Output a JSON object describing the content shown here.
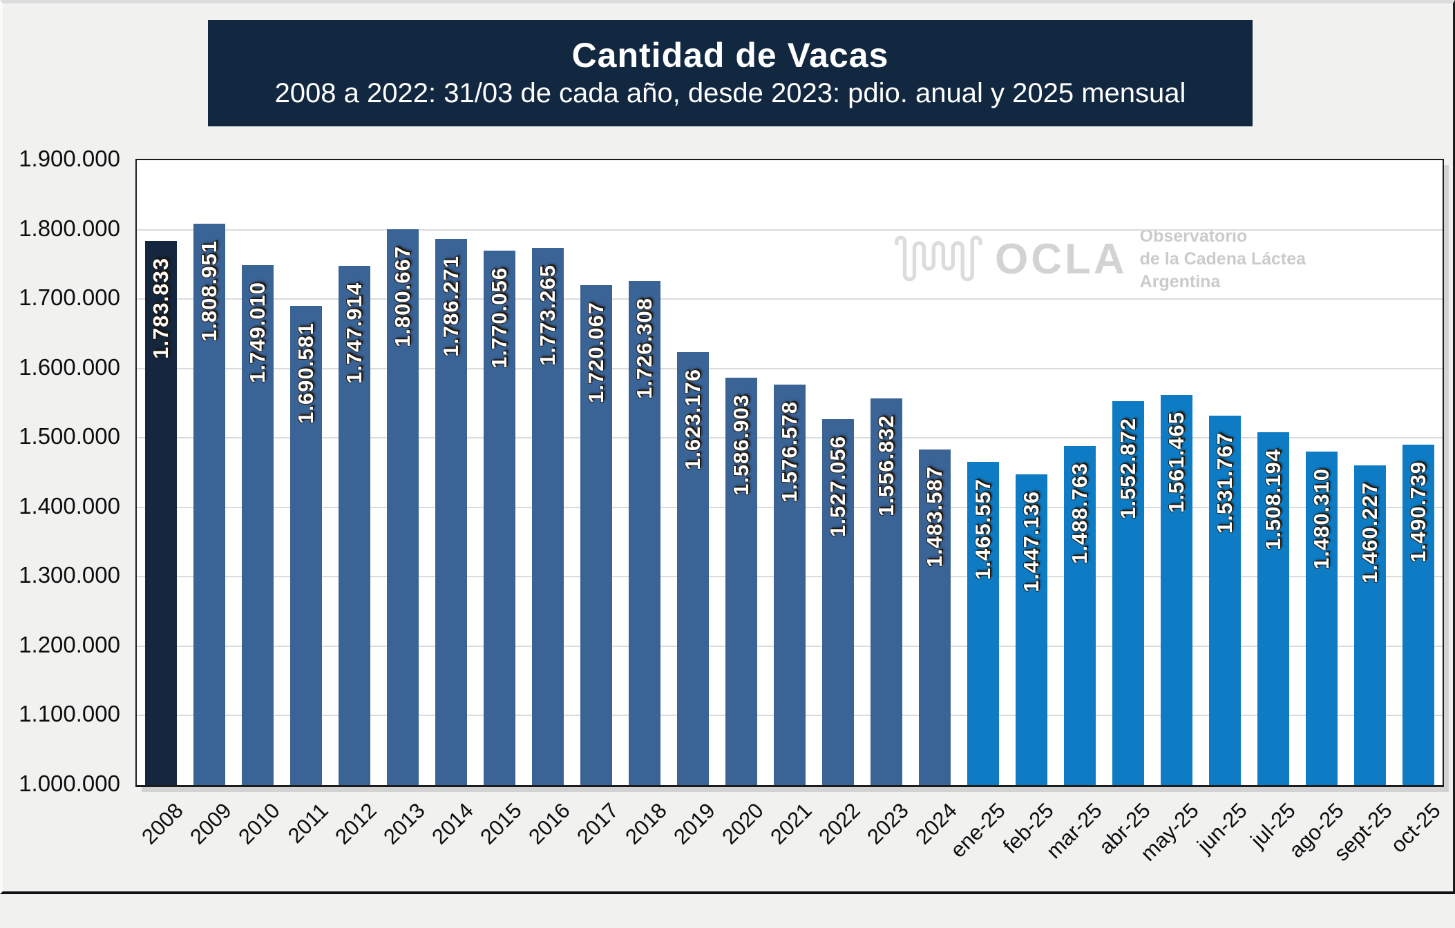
{
  "header": {
    "title": "Cantidad de Vacas",
    "subtitle": "2008 a 2022: 31/03 de cada año, desde 2023: pdio. anual y 2025 mensual"
  },
  "watermark": {
    "brand": "OCLA",
    "line1": "Observatorio",
    "line2": "de la Cadena Láctea",
    "line3": "Argentina"
  },
  "colors": {
    "background": "#F1F1F0",
    "header_bg": "#122740",
    "header_text": "#FFFFFF",
    "plot_bg": "#FFFFFF",
    "plot_border": "#1C1C1C",
    "gridline": "#DBDBDB",
    "axis_text": "#0D0D0D",
    "bar_start": "#14273E",
    "bar_annual": "#3A6396",
    "bar_monthly": "#0E7CC4",
    "bar_label_text": "#FFFFFF",
    "watermark_gray": "#D3D3D3",
    "watermark_text_gray": "#CBCBCB"
  },
  "chart_data": {
    "type": "bar",
    "title": "Cantidad de Vacas",
    "subtitle": "2008 a 2022: 31/03 de cada año, desde 2023: pdio. anual y 2025 mensual",
    "categories": [
      "2008",
      "2009",
      "2010",
      "2011",
      "2012",
      "2013",
      "2014",
      "2015",
      "2016",
      "2017",
      "2018",
      "2019",
      "2020",
      "2021",
      "2022",
      "2023",
      "2024",
      "ene-25",
      "feb-25",
      "mar-25",
      "abr-25",
      "may-25",
      "jun-25",
      "jul-25",
      "ago-25",
      "sept-25",
      "oct-25"
    ],
    "values": [
      1783833,
      1808951,
      1749010,
      1690581,
      1747914,
      1800667,
      1786271,
      1770056,
      1773265,
      1720067,
      1726308,
      1623176,
      1586903,
      1576578,
      1527056,
      1556832,
      1483587,
      1465557,
      1447136,
      1488763,
      1552872,
      1561465,
      1531767,
      1508194,
      1480310,
      1460227,
      1490739
    ],
    "groups": [
      "start",
      "annual",
      "annual",
      "annual",
      "annual",
      "annual",
      "annual",
      "annual",
      "annual",
      "annual",
      "annual",
      "annual",
      "annual",
      "annual",
      "annual",
      "annual",
      "annual",
      "monthly",
      "monthly",
      "monthly",
      "monthly",
      "monthly",
      "monthly",
      "monthly",
      "monthly",
      "monthly",
      "monthly"
    ],
    "value_labels_rotated_vertical": true,
    "ylim": [
      1000000,
      1900000
    ],
    "ytick_step": 100000,
    "ytick_labels": [
      "1.000.000",
      "1.100.000",
      "1.200.000",
      "1.300.000",
      "1.400.000",
      "1.500.000",
      "1.600.000",
      "1.700.000",
      "1.800.000",
      "1.900.000"
    ],
    "grid": true,
    "legend": null,
    "xlabel": "",
    "ylabel": ""
  }
}
